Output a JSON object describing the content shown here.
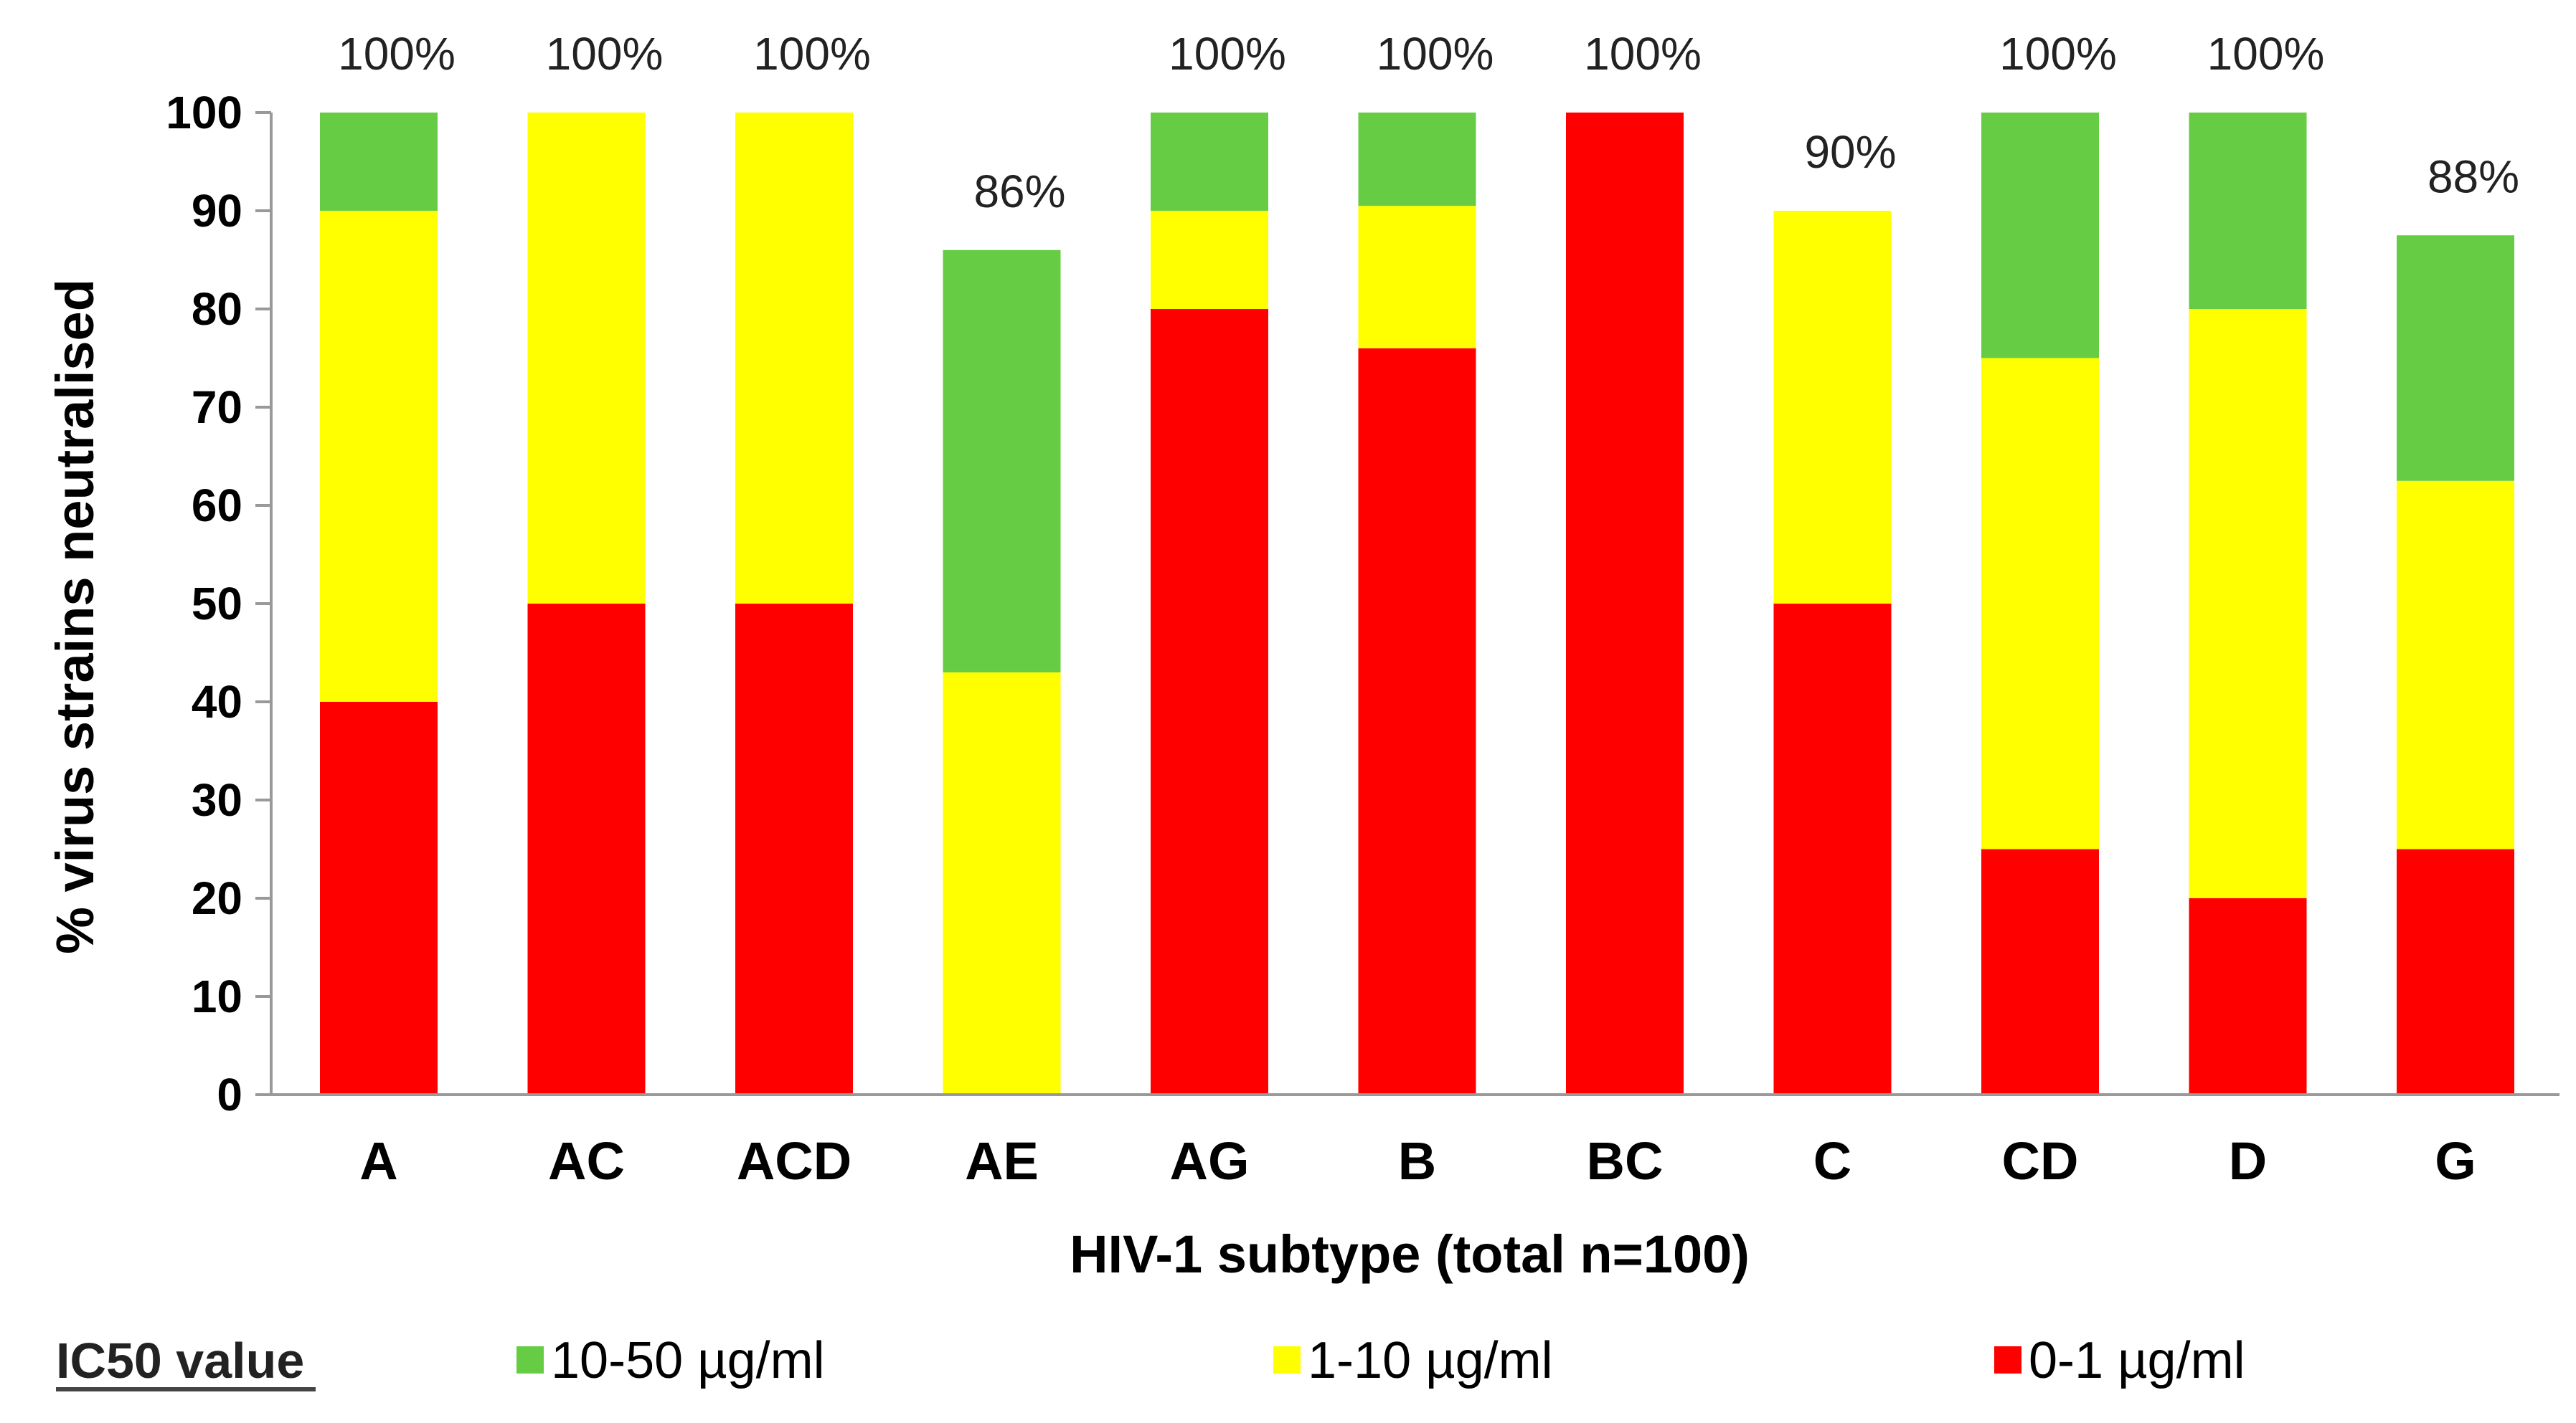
{
  "chart_data": {
    "type": "bar",
    "stacked": true,
    "title": "",
    "xlabel": "HIV-1 subtype (total n=100)",
    "ylabel": "%  virus  strains neutralised",
    "ylim": [
      0,
      100
    ],
    "yticks": [
      0,
      10,
      20,
      30,
      40,
      50,
      60,
      70,
      80,
      90,
      100
    ],
    "grid": false,
    "categories": [
      "A",
      "AC",
      "ACD",
      "AE",
      "AG",
      "B",
      "BC",
      "C",
      "CD",
      "D",
      "G"
    ],
    "series": [
      {
        "name": "0-1 µg/ml",
        "color": "#ff0000",
        "values": [
          40,
          50,
          50,
          0,
          80,
          76,
          100,
          50,
          25,
          20,
          25
        ]
      },
      {
        "name": "1-10 µg/ml",
        "color": "#ffff00",
        "values": [
          50,
          50,
          50,
          43,
          10,
          14.5,
          0,
          40,
          50,
          60,
          37.5
        ]
      },
      {
        "name": "10-50 µg/ml",
        "color": "#66cc44",
        "values": [
          10,
          0,
          0,
          43,
          10,
          9.5,
          0,
          0,
          25,
          20,
          25
        ]
      }
    ],
    "total_labels": [
      "100%",
      "100%",
      "100%",
      "86%",
      "100%",
      "100%",
      "100%",
      "90%",
      "100%",
      "100%",
      "88%"
    ],
    "legend": {
      "title": "IC50 value",
      "placement": "bottom",
      "order": [
        "10-50 µg/ml",
        "1-10 µg/ml",
        "0-1 µg/ml"
      ]
    }
  }
}
